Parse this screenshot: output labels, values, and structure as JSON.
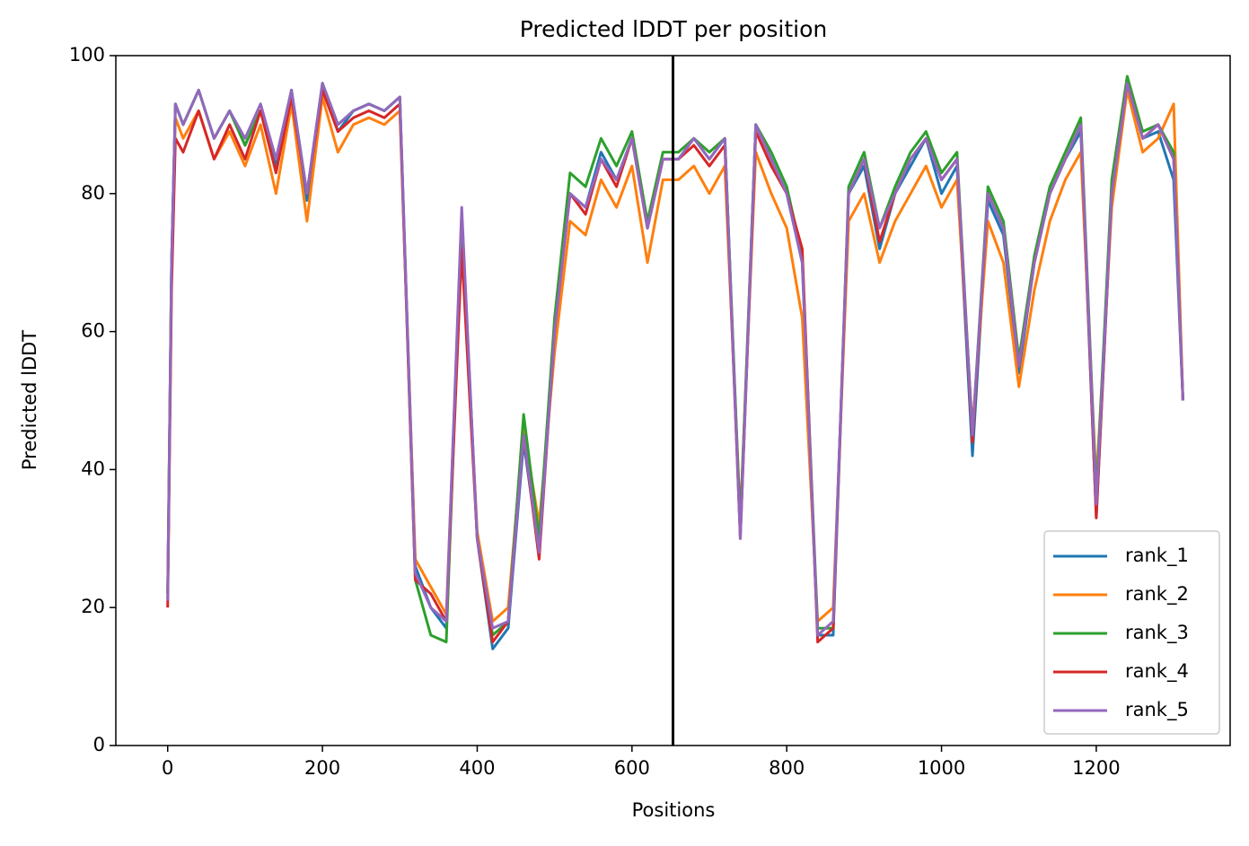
{
  "chart_data": {
    "type": "line",
    "title": "Predicted lDDT per position",
    "xlabel": "Positions",
    "ylabel": "Predicted lDDT",
    "x": [
      0,
      5,
      10,
      20,
      40,
      60,
      80,
      100,
      120,
      140,
      160,
      180,
      200,
      220,
      240,
      260,
      280,
      300,
      320,
      340,
      360,
      380,
      400,
      420,
      440,
      460,
      480,
      500,
      520,
      540,
      560,
      580,
      600,
      620,
      640,
      660,
      680,
      700,
      720,
      740,
      760,
      780,
      800,
      820,
      840,
      860,
      880,
      900,
      920,
      940,
      960,
      980,
      1000,
      1020,
      1040,
      1060,
      1080,
      1100,
      1120,
      1140,
      1160,
      1180,
      1200,
      1220,
      1240,
      1260,
      1280,
      1300,
      1312
    ],
    "series": [
      {
        "name": "rank_1",
        "color": "#1f77b4",
        "values": [
          22,
          70,
          93,
          90,
          95,
          88,
          92,
          87,
          92,
          84,
          95,
          79,
          96,
          89,
          92,
          93,
          92,
          94,
          26,
          20,
          17,
          77,
          30,
          14,
          17,
          44,
          28,
          61,
          80,
          78,
          86,
          82,
          88,
          75,
          85,
          85,
          88,
          85,
          88,
          31,
          90,
          85,
          80,
          70,
          16,
          16,
          80,
          84,
          72,
          80,
          84,
          88,
          80,
          84,
          42,
          79,
          74,
          54,
          70,
          80,
          85,
          89,
          33,
          80,
          96,
          88,
          89,
          82,
          50
        ]
      },
      {
        "name": "rank_2",
        "color": "#ff7f0e",
        "values": [
          22,
          68,
          91,
          88,
          92,
          85,
          89,
          84,
          90,
          80,
          93,
          76,
          94,
          86,
          90,
          91,
          90,
          92,
          27,
          23,
          19,
          75,
          31,
          18,
          20,
          46,
          32,
          57,
          76,
          74,
          82,
          78,
          84,
          70,
          82,
          82,
          84,
          80,
          84,
          33,
          86,
          80,
          75,
          62,
          18,
          20,
          76,
          80,
          70,
          76,
          80,
          84,
          78,
          82,
          46,
          76,
          70,
          52,
          66,
          76,
          82,
          86,
          38,
          78,
          95,
          86,
          88,
          93,
          50
        ]
      },
      {
        "name": "rank_3",
        "color": "#2ca02c",
        "values": [
          22,
          70,
          93,
          90,
          95,
          88,
          92,
          87,
          92,
          85,
          95,
          80,
          96,
          90,
          92,
          93,
          92,
          94,
          24,
          16,
          15,
          76,
          30,
          16,
          18,
          48,
          30,
          62,
          83,
          81,
          88,
          84,
          89,
          76,
          86,
          86,
          88,
          86,
          88,
          32,
          90,
          86,
          81,
          71,
          17,
          17,
          81,
          86,
          75,
          81,
          86,
          89,
          83,
          86,
          45,
          81,
          76,
          56,
          71,
          81,
          86,
          91,
          36,
          82,
          97,
          89,
          90,
          86,
          50
        ]
      },
      {
        "name": "rank_4",
        "color": "#d62728",
        "values": [
          20,
          66,
          88,
          86,
          92,
          85,
          90,
          85,
          92,
          83,
          94,
          80,
          95,
          89,
          91,
          92,
          91,
          93,
          24,
          22,
          18,
          72,
          30,
          15,
          18,
          45,
          27,
          60,
          80,
          77,
          85,
          81,
          88,
          75,
          85,
          85,
          87,
          84,
          87,
          30,
          89,
          84,
          80,
          72,
          15,
          17,
          80,
          85,
          73,
          80,
          85,
          88,
          82,
          85,
          44,
          80,
          75,
          55,
          70,
          80,
          85,
          90,
          33,
          80,
          96,
          88,
          90,
          85,
          50
        ]
      },
      {
        "name": "rank_5",
        "color": "#9467bd",
        "values": [
          21,
          70,
          93,
          90,
          95,
          88,
          92,
          88,
          93,
          85,
          95,
          80,
          96,
          90,
          92,
          93,
          92,
          94,
          25,
          20,
          18,
          78,
          30,
          17,
          18,
          45,
          28,
          60,
          80,
          78,
          85,
          82,
          88,
          75,
          85,
          85,
          88,
          85,
          88,
          30,
          90,
          85,
          80,
          70,
          16,
          18,
          80,
          85,
          75,
          80,
          85,
          88,
          82,
          85,
          45,
          80,
          75,
          55,
          70,
          80,
          85,
          90,
          35,
          80,
          96,
          88,
          90,
          85,
          50
        ]
      }
    ],
    "vline": 653,
    "xlim": [
      -67,
      1373
    ],
    "ylim": [
      0,
      100
    ],
    "xticks": [
      0,
      200,
      400,
      600,
      800,
      1000,
      1200
    ],
    "yticks": [
      0,
      20,
      40,
      60,
      80,
      100
    ],
    "legend": "lower right"
  }
}
